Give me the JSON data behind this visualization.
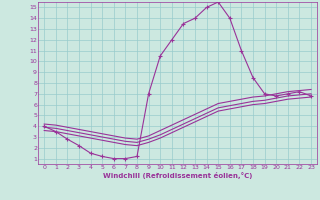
{
  "xlabel": "Windchill (Refroidissement éolien,°C)",
  "bg_color": "#cce8e0",
  "line_color": "#993399",
  "grid_color": "#99cccc",
  "font_color": "#993399",
  "xlim": [
    -0.5,
    23.5
  ],
  "ylim": [
    0.5,
    15.5
  ],
  "xticks": [
    0,
    1,
    2,
    3,
    4,
    5,
    6,
    7,
    8,
    9,
    10,
    11,
    12,
    13,
    14,
    15,
    16,
    17,
    18,
    19,
    20,
    21,
    22,
    23
  ],
  "yticks": [
    1,
    2,
    3,
    4,
    5,
    6,
    7,
    8,
    9,
    10,
    11,
    12,
    13,
    14,
    15
  ],
  "series": [
    {
      "x": [
        0,
        1,
        2,
        3,
        4,
        5,
        6,
        7,
        8,
        9,
        10,
        11,
        12,
        13,
        14,
        15,
        16,
        17,
        18,
        19,
        20,
        21,
        22,
        23
      ],
      "y": [
        4.0,
        3.5,
        2.8,
        2.2,
        1.5,
        1.2,
        1.0,
        1.0,
        1.2,
        7.0,
        10.5,
        12.0,
        13.5,
        14.0,
        15.0,
        15.5,
        14.0,
        11.0,
        8.5,
        7.0,
        6.8,
        7.0,
        7.2,
        6.8
      ],
      "marker": "+",
      "lw": 0.8
    },
    {
      "x": [
        0,
        1,
        2,
        3,
        4,
        5,
        6,
        7,
        8,
        9,
        10,
        11,
        12,
        13,
        14,
        15,
        16,
        17,
        18,
        19,
        20,
        21,
        22,
        23
      ],
      "y": [
        4.2,
        4.1,
        3.9,
        3.7,
        3.5,
        3.3,
        3.1,
        2.9,
        2.8,
        3.1,
        3.6,
        4.1,
        4.6,
        5.1,
        5.6,
        6.1,
        6.3,
        6.5,
        6.7,
        6.8,
        7.0,
        7.2,
        7.3,
        7.4
      ],
      "marker": "",
      "lw": 0.8
    },
    {
      "x": [
        0,
        1,
        2,
        3,
        4,
        5,
        6,
        7,
        8,
        9,
        10,
        11,
        12,
        13,
        14,
        15,
        16,
        17,
        18,
        19,
        20,
        21,
        22,
        23
      ],
      "y": [
        3.9,
        3.8,
        3.6,
        3.4,
        3.2,
        3.0,
        2.8,
        2.6,
        2.5,
        2.8,
        3.2,
        3.7,
        4.2,
        4.7,
        5.2,
        5.7,
        5.9,
        6.1,
        6.3,
        6.4,
        6.6,
        6.8,
        6.9,
        7.0
      ],
      "marker": "",
      "lw": 0.8
    },
    {
      "x": [
        0,
        1,
        2,
        3,
        4,
        5,
        6,
        7,
        8,
        9,
        10,
        11,
        12,
        13,
        14,
        15,
        16,
        17,
        18,
        19,
        20,
        21,
        22,
        23
      ],
      "y": [
        3.6,
        3.5,
        3.3,
        3.1,
        2.9,
        2.7,
        2.5,
        2.3,
        2.2,
        2.5,
        2.9,
        3.4,
        3.9,
        4.4,
        4.9,
        5.4,
        5.6,
        5.8,
        6.0,
        6.1,
        6.3,
        6.5,
        6.6,
        6.7
      ],
      "marker": "",
      "lw": 0.8
    }
  ]
}
